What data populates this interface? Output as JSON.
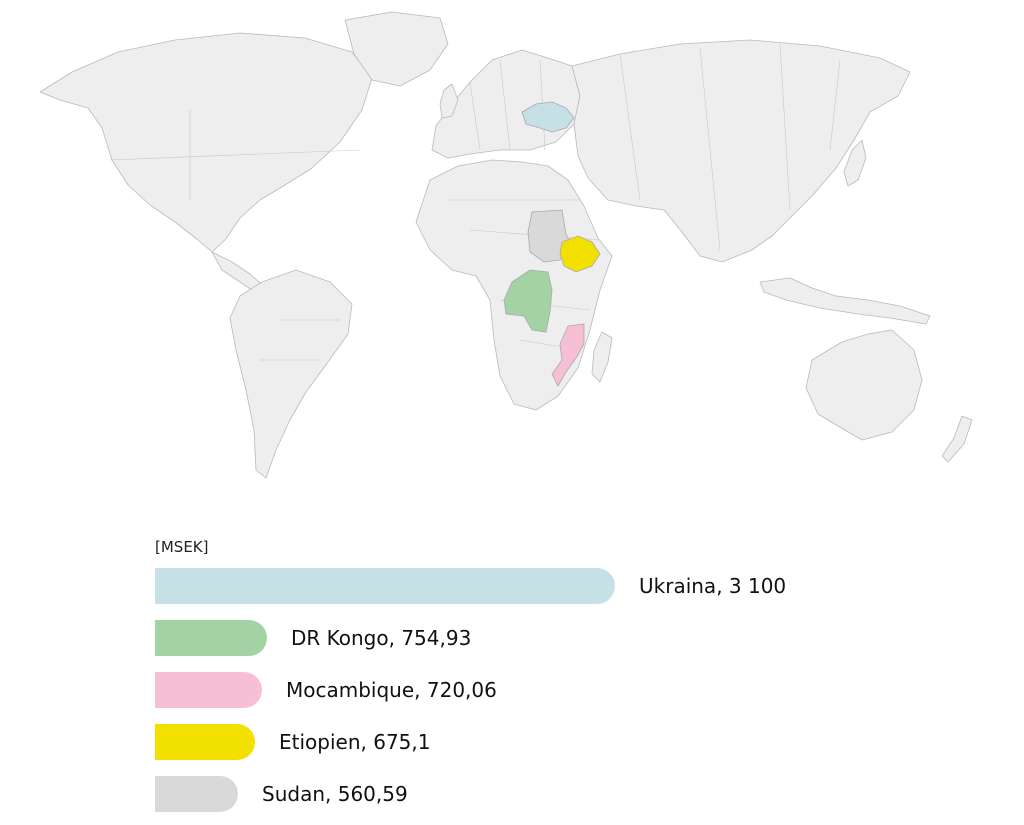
{
  "chart_data": {
    "type": "bar",
    "orientation": "horizontal",
    "unit": "[MSEK]",
    "categories": [
      "Ukraina",
      "DR Kongo",
      "Mocambique",
      "Etiopien",
      "Sudan"
    ],
    "values": [
      3100,
      754.93,
      720.06,
      675.1,
      560.59
    ],
    "labels": [
      "Ukraina, 3 100",
      "DR Kongo, 754,93",
      "Mocambique, 720,06",
      "Etiopien, 675,1",
      "Sudan, 560,59"
    ],
    "colors": [
      "#c5e1e6",
      "#a3d3a5",
      "#f6bfd6",
      "#f2e000",
      "#d9d9d9"
    ],
    "legend": "none",
    "grid": false
  },
  "map": {
    "highlighted_countries": [
      {
        "name": "Ukraina",
        "color": "#c5e1e6"
      },
      {
        "name": "DR Kongo",
        "color": "#a3d3a5"
      },
      {
        "name": "Mocambique",
        "color": "#f6bfd6"
      },
      {
        "name": "Etiopien",
        "color": "#f2e000"
      },
      {
        "name": "Sudan",
        "color": "#d9d9d9"
      }
    ],
    "base_color": "#eeeeee"
  }
}
